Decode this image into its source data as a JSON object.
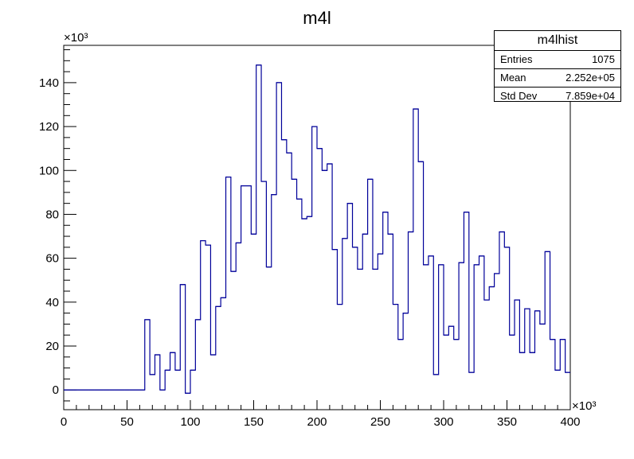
{
  "chart_data": {
    "type": "histogram",
    "title": "m4l",
    "xlabel": "",
    "ylabel": "",
    "x_multiplier": "×10³",
    "y_multiplier": "×10³",
    "xlim": [
      0,
      400
    ],
    "ylim": [
      -9,
      157
    ],
    "x_ticks": [
      0,
      50,
      100,
      150,
      200,
      250,
      300,
      350,
      400
    ],
    "y_ticks": [
      0,
      20,
      40,
      60,
      80,
      100,
      120,
      140
    ],
    "bin_width": 4,
    "bins_x_start": [
      0,
      4,
      8,
      12,
      16,
      20,
      24,
      28,
      32,
      36,
      40,
      44,
      48,
      52,
      56,
      60,
      64,
      68,
      72,
      76,
      80,
      84,
      88,
      92,
      96,
      100,
      104,
      108,
      112,
      116,
      120,
      124,
      128,
      132,
      136,
      140,
      144,
      148,
      152,
      156,
      160,
      164,
      168,
      172,
      176,
      180,
      184,
      188,
      192,
      196,
      200,
      204,
      208,
      212,
      216,
      220,
      224,
      228,
      232,
      236,
      240,
      244,
      248,
      252,
      256,
      260,
      264,
      268,
      272,
      276,
      280,
      284,
      288,
      292,
      296,
      300,
      304,
      308,
      312,
      316,
      320,
      324,
      328,
      332,
      336,
      340,
      344,
      348,
      352,
      356,
      360,
      364,
      368,
      372,
      376,
      380,
      384,
      388,
      392,
      396
    ],
    "values": [
      0,
      0,
      0,
      0,
      0,
      0,
      0,
      0,
      0,
      0,
      0,
      0,
      0,
      0,
      0,
      0,
      32,
      7,
      16,
      0,
      9,
      17,
      9,
      48,
      -1.5,
      9,
      32,
      68,
      66,
      16,
      38,
      42,
      97,
      54,
      67,
      93,
      93,
      71,
      148,
      95,
      56,
      89,
      140,
      114,
      108,
      96,
      87,
      78,
      79,
      120,
      110,
      100,
      103,
      64,
      39,
      69,
      85,
      65,
      55,
      71,
      96,
      55,
      62,
      81,
      71,
      39,
      23,
      35,
      72,
      128,
      104,
      57,
      61,
      7,
      57,
      25,
      29,
      23,
      58,
      81,
      8,
      57,
      61,
      41,
      47,
      53,
      72,
      65,
      25,
      41,
      17,
      37,
      17,
      36,
      30,
      63,
      23,
      9,
      23,
      8
    ],
    "stats": {
      "name": "m4lhist",
      "rows": [
        {
          "label": "Entries",
          "value": "1075"
        },
        {
          "label": "Mean",
          "value": "2.252e+05"
        },
        {
          "label": "Std Dev",
          "value": "7.859e+04"
        }
      ]
    },
    "line_color": "#000099",
    "grid": false
  }
}
